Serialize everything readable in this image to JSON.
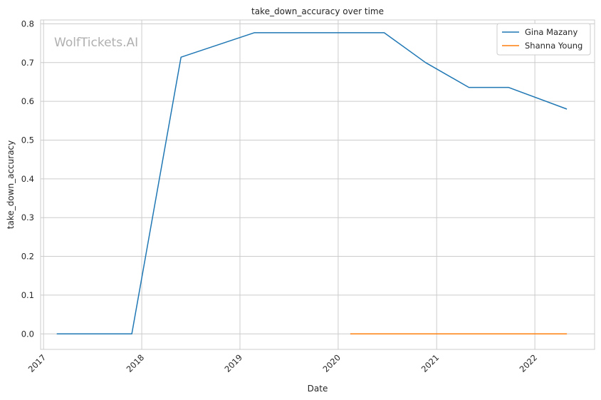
{
  "chart_data": {
    "type": "line",
    "title": "take_down_accuracy over time",
    "xlabel": "Date",
    "ylabel": "take_down_accuracy",
    "watermark": "WolfTickets.AI",
    "x_ticks": [
      "2017",
      "2018",
      "2019",
      "2020",
      "2021",
      "2022"
    ],
    "y_ticks": [
      "0.0",
      "0.1",
      "0.2",
      "0.3",
      "0.4",
      "0.5",
      "0.6",
      "0.7",
      "0.8"
    ],
    "xlim": [
      "2016-12-21",
      "2022-08-11"
    ],
    "ylim": [
      -0.04,
      0.81
    ],
    "grid": true,
    "legend_position": "top-right",
    "series": [
      {
        "name": "Gina Mazany",
        "color": "#1f77b4",
        "points": [
          {
            "x": "2017-02-19",
            "y": 0.0
          },
          {
            "x": "2017-11-25",
            "y": 0.0
          },
          {
            "x": "2018-05-27",
            "y": 0.714
          },
          {
            "x": "2019-02-23",
            "y": 0.777
          },
          {
            "x": "2020-06-20",
            "y": 0.777
          },
          {
            "x": "2020-11-21",
            "y": 0.7
          },
          {
            "x": "2021-05-01",
            "y": 0.636
          },
          {
            "x": "2021-09-25",
            "y": 0.636
          },
          {
            "x": "2022-04-30",
            "y": 0.58
          }
        ]
      },
      {
        "name": "Shanna Young",
        "color": "#ff7f0e",
        "points": [
          {
            "x": "2020-02-15",
            "y": 0.0
          },
          {
            "x": "2022-04-30",
            "y": 0.0
          }
        ]
      }
    ]
  }
}
